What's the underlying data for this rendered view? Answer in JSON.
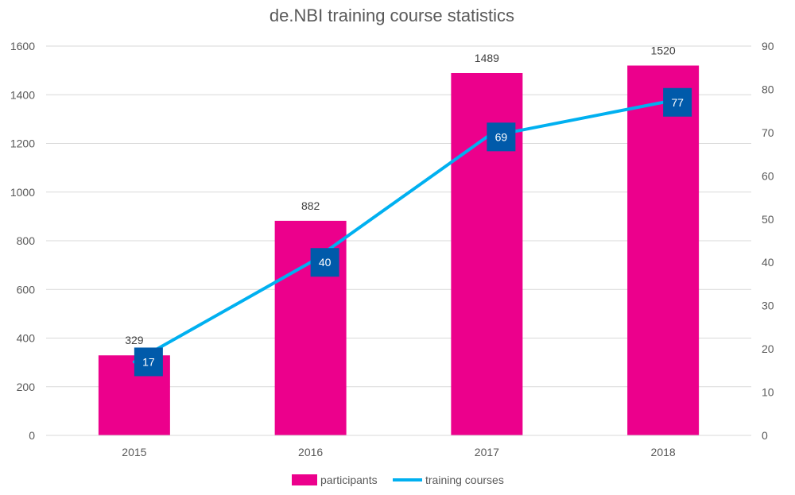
{
  "chart_data": {
    "type": "bar",
    "title": "de.NBI training course statistics",
    "categories": [
      "2015",
      "2016",
      "2017",
      "2018"
    ],
    "series": [
      {
        "name": "participants",
        "type": "bar",
        "axis": "left",
        "values": [
          329,
          882,
          1489,
          1520
        ]
      },
      {
        "name": "training courses",
        "type": "line",
        "axis": "right",
        "values": [
          17,
          40,
          69,
          77
        ]
      }
    ],
    "ylim_left": [
      0,
      1600
    ],
    "yticks_left": [
      "0",
      "200",
      "400",
      "600",
      "800",
      "1000",
      "1200",
      "1400",
      "1600"
    ],
    "ylim_right": [
      0,
      90
    ],
    "yticks_right": [
      "0",
      "10",
      "20",
      "30",
      "40",
      "50",
      "60",
      "70",
      "80",
      "90"
    ],
    "grid": true,
    "legend_position": "bottom",
    "colors": {
      "bars": "#EC008C",
      "line": "#00B0F0",
      "marker": "#005AAA",
      "grid": "#D9D9D9"
    }
  }
}
